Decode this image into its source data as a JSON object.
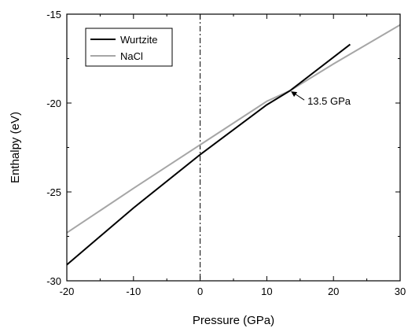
{
  "chart_data": {
    "type": "line",
    "title": "",
    "xlabel": "Pressure (GPa)",
    "ylabel": "Enthalpy (eV)",
    "xlim": [
      -20,
      30
    ],
    "ylim": [
      -30,
      -15
    ],
    "x_ticks": [
      -20,
      -10,
      0,
      10,
      20,
      30
    ],
    "y_ticks": [
      -30,
      -25,
      -20,
      -15
    ],
    "x_tick_labels": [
      "-20",
      "-10",
      "0",
      "10",
      "20",
      "30"
    ],
    "y_tick_labels": [
      "-30",
      "-25",
      "-20",
      "-15"
    ],
    "grid": false,
    "legend_position": "top-left",
    "series": [
      {
        "name": "Wurtzite",
        "color": "#000000",
        "x": [
          -20,
          -10,
          0,
          10,
          13.5,
          22.5
        ],
        "y": [
          -29.1,
          -25.9,
          -22.9,
          -20.1,
          -19.3,
          -16.7
        ]
      },
      {
        "name": "NaCl",
        "color": "#a6a6a6",
        "x": [
          -20,
          -10,
          0,
          10,
          13.5,
          20,
          30
        ],
        "y": [
          -27.3,
          -24.8,
          -22.35,
          -19.9,
          -19.3,
          -17.8,
          -15.6
        ]
      }
    ],
    "reference_line": {
      "x": 0,
      "style": "dash-dot"
    },
    "annotation": {
      "text": "13.5 GPa",
      "x": 13.5,
      "y": -19.3
    }
  }
}
